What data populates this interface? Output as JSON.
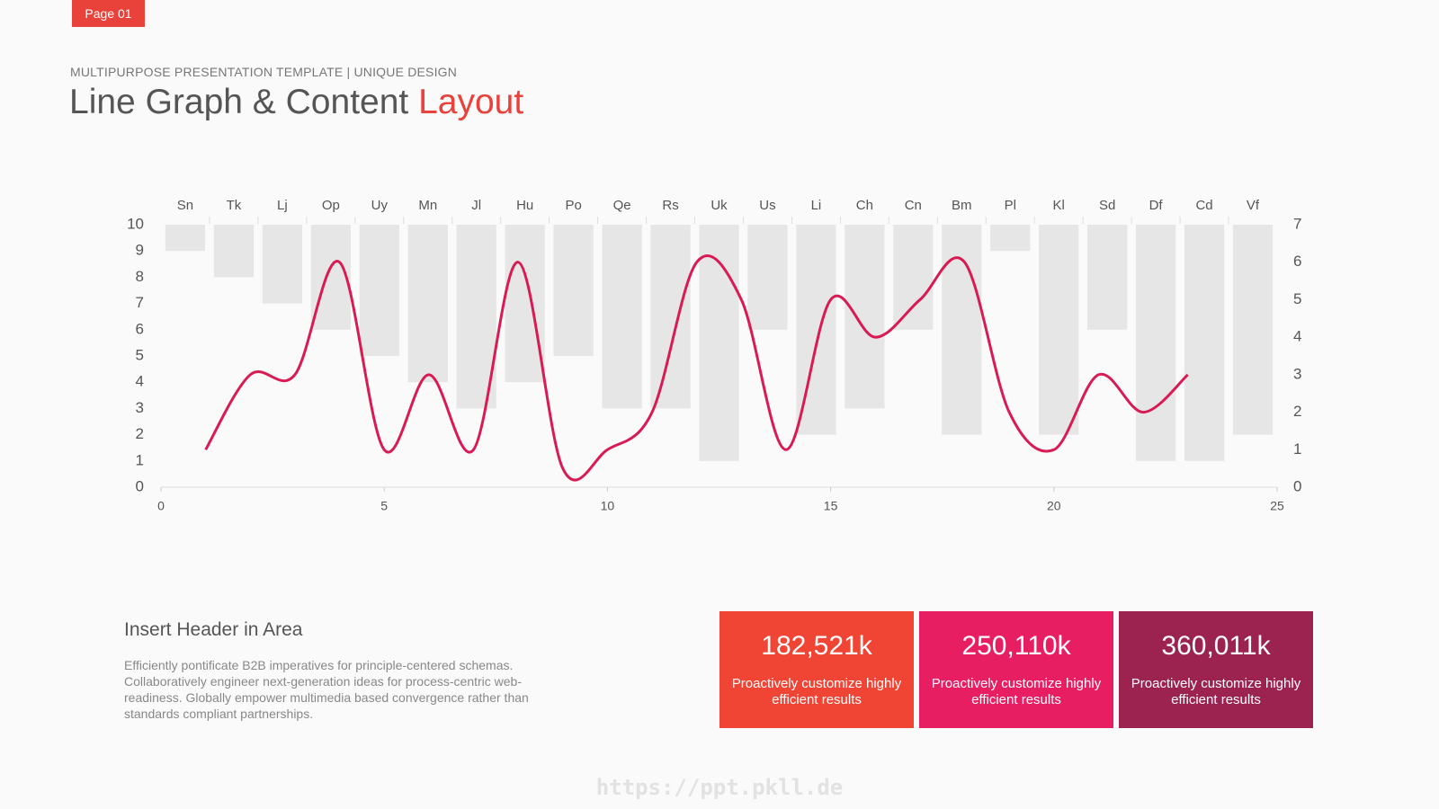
{
  "page_label": "Page 01",
  "header": {
    "subtitle": "MULTIPURPOSE PRESENTATION TEMPLATE | UNIQUE DESIGN",
    "title": "Line Graph & Content",
    "title_accent": "Layout"
  },
  "chart_data": [
    {
      "type": "bar",
      "color": "#e6e6e6",
      "categories": [
        "Sn",
        "Tk",
        "Lj",
        "Op",
        "Uy",
        "Mn",
        "Jl",
        "Hu",
        "Po",
        "Qe",
        "Rs",
        "Uk",
        "Us",
        "Li",
        "Ch",
        "Cn",
        "Bm",
        "Pl",
        "Kl",
        "Sd",
        "Df",
        "Cd",
        "Vf"
      ],
      "values": [
        9,
        8,
        7,
        6,
        5,
        4,
        3,
        4,
        5,
        3,
        3,
        1,
        6,
        2,
        3,
        6,
        2,
        9,
        2,
        6,
        1,
        1,
        2
      ],
      "ylim": [
        0,
        10
      ],
      "yticks": [
        0,
        1,
        2,
        3,
        4,
        5,
        6,
        7,
        8,
        9,
        10
      ]
    },
    {
      "type": "line",
      "color": "#d81b55",
      "smooth": true,
      "x": [
        1,
        2,
        3,
        4,
        5,
        6,
        7,
        8,
        9,
        10,
        11,
        12,
        13,
        14,
        15,
        16,
        17,
        18,
        19,
        20,
        21,
        22,
        23
      ],
      "y": [
        1,
        3,
        3,
        6,
        1,
        3,
        1,
        6,
        0.5,
        1,
        2,
        6,
        5,
        1,
        5,
        4,
        5,
        6,
        2,
        1,
        3,
        2,
        3
      ],
      "xlim": [
        0,
        25
      ],
      "xticks": [
        0,
        5,
        10,
        15,
        20,
        25
      ],
      "ylim": [
        0,
        7
      ],
      "yticks": [
        0,
        1,
        2,
        3,
        4,
        5,
        6,
        7
      ]
    }
  ],
  "content": {
    "heading": "Insert Header in Area",
    "body": "Efficiently pontificate B2B imperatives for principle-centered schemas. Collaboratively engineer next-generation ideas for process-centric web-readiness. Globally empower multimedia based convergence rather than standards compliant partnerships."
  },
  "stats": [
    {
      "value": "182,521k",
      "text": "Proactively customize highly efficient results",
      "color": "#f04535"
    },
    {
      "value": "250,110k",
      "text": "Proactively customize highly efficient results",
      "color": "#e81e63"
    },
    {
      "value": "360,011k",
      "text": "Proactively customize highly efficient results",
      "color": "#9c2350"
    }
  ],
  "watermark": "https://ppt.pkll.de"
}
